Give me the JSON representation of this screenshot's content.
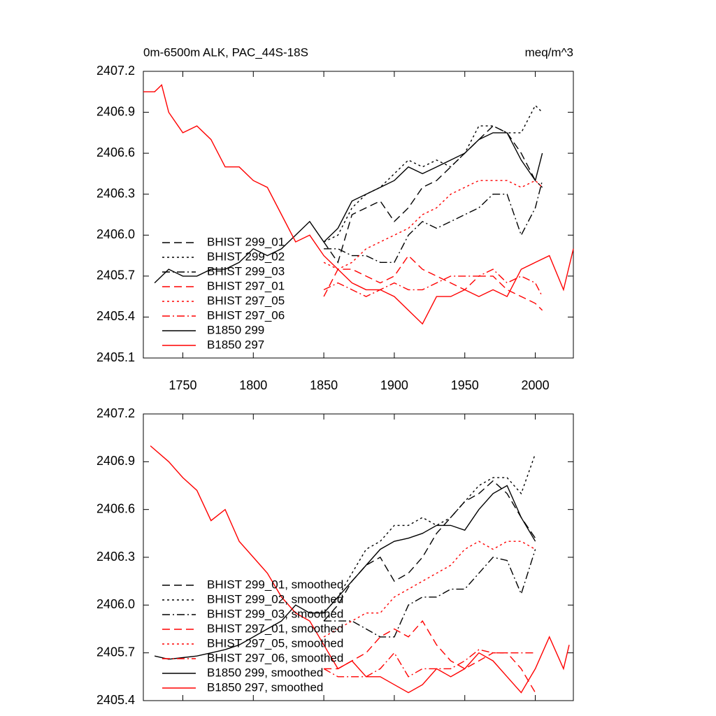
{
  "chart_data": [
    {
      "type": "line",
      "title": "0m-6500m ALK, PAC_44S-18S",
      "y_units": "meq/m^3",
      "xlim": [
        1722,
        2027
      ],
      "xticks": [
        1750,
        1800,
        1850,
        1900,
        1950,
        2000
      ],
      "xtick_labels": true,
      "ylim": [
        2405.1,
        2407.2
      ],
      "yticks": [
        2405.1,
        2405.4,
        2405.7,
        {
          "value": 2406,
          "label": "2406.0"
        },
        2406.3,
        2406.6,
        2406.9,
        2407.2
      ],
      "legend": "lower left",
      "series": [
        {
          "name": "BHIST 299_01",
          "color": "#000000",
          "dash": "dashed",
          "x": [
            1850,
            1860,
            1870,
            1880,
            1890,
            1900,
            1910,
            1920,
            1930,
            1940,
            1950,
            1960,
            1970,
            1980,
            1990,
            2000,
            2005
          ],
          "values": [
            2405.95,
            2405.8,
            2406.15,
            2406.2,
            2406.25,
            2406.1,
            2406.2,
            2406.35,
            2406.4,
            2406.5,
            2406.6,
            2406.7,
            2406.8,
            2406.75,
            2406.6,
            2406.4,
            2406.35
          ]
        },
        {
          "name": "BHIST 299_02",
          "color": "#000000",
          "dash": "dotted",
          "x": [
            1850,
            1860,
            1870,
            1880,
            1890,
            1900,
            1910,
            1920,
            1930,
            1940,
            1950,
            1960,
            1970,
            1980,
            1990,
            2000,
            2005
          ],
          "values": [
            2405.95,
            2406.0,
            2406.2,
            2406.3,
            2406.35,
            2406.45,
            2406.55,
            2406.5,
            2406.55,
            2406.5,
            2406.6,
            2406.8,
            2406.8,
            2406.75,
            2406.75,
            2406.95,
            2406.9
          ]
        },
        {
          "name": "BHIST 299_03",
          "color": "#000000",
          "dash": "dashdot",
          "x": [
            1850,
            1860,
            1870,
            1880,
            1890,
            1900,
            1910,
            1920,
            1930,
            1940,
            1950,
            1960,
            1970,
            1980,
            1990,
            2000,
            2005
          ],
          "values": [
            2405.9,
            2405.9,
            2405.85,
            2405.85,
            2405.8,
            2405.8,
            2406.0,
            2406.1,
            2406.05,
            2406.1,
            2406.15,
            2406.2,
            2406.3,
            2406.3,
            2406.0,
            2406.2,
            2406.4
          ]
        },
        {
          "name": "BHIST 297_01",
          "color": "#ff0000",
          "dash": "dashed",
          "x": [
            1850,
            1860,
            1870,
            1880,
            1890,
            1900,
            1910,
            1920,
            1930,
            1940,
            1950,
            1960,
            1970,
            1980,
            1990,
            2000,
            2005
          ],
          "values": [
            2405.55,
            2405.75,
            2405.75,
            2405.7,
            2405.65,
            2405.7,
            2405.85,
            2405.75,
            2405.7,
            2405.65,
            2405.6,
            2405.7,
            2405.7,
            2405.6,
            2405.55,
            2405.5,
            2405.45
          ]
        },
        {
          "name": "BHIST 297_05",
          "color": "#ff0000",
          "dash": "dotted",
          "x": [
            1850,
            1860,
            1870,
            1880,
            1890,
            1900,
            1910,
            1920,
            1930,
            1940,
            1950,
            1960,
            1970,
            1980,
            1990,
            2000,
            2005
          ],
          "values": [
            2405.8,
            2405.75,
            2405.8,
            2405.9,
            2405.95,
            2406.0,
            2406.05,
            2406.15,
            2406.2,
            2406.3,
            2406.35,
            2406.4,
            2406.4,
            2406.4,
            2406.35,
            2406.4,
            2406.35
          ]
        },
        {
          "name": "BHIST 297_06",
          "color": "#ff0000",
          "dash": "dashdot",
          "x": [
            1850,
            1860,
            1870,
            1880,
            1890,
            1900,
            1910,
            1920,
            1930,
            1940,
            1950,
            1960,
            1970,
            1980,
            1990,
            2000,
            2005
          ],
          "values": [
            2405.6,
            2405.65,
            2405.6,
            2405.55,
            2405.6,
            2405.65,
            2405.6,
            2405.6,
            2405.65,
            2405.7,
            2405.7,
            2405.7,
            2405.75,
            2405.65,
            2405.7,
            2405.65,
            2405.55
          ]
        },
        {
          "name": "B1850 299",
          "color": "#000000",
          "dash": "solid",
          "x": [
            1730,
            1740,
            1750,
            1760,
            1770,
            1780,
            1790,
            1800,
            1810,
            1820,
            1830,
            1840,
            1850,
            1860,
            1870,
            1880,
            1890,
            1900,
            1910,
            1920,
            1930,
            1940,
            1950,
            1960,
            1970,
            1980,
            1990,
            2000,
            2005
          ],
          "values": [
            2405.65,
            2405.75,
            2405.7,
            2405.7,
            2405.75,
            2405.75,
            2405.8,
            2405.9,
            2405.85,
            2405.9,
            2406.0,
            2406.1,
            2405.95,
            2406.05,
            2406.25,
            2406.3,
            2406.35,
            2406.4,
            2406.5,
            2406.45,
            2406.5,
            2406.55,
            2406.6,
            2406.7,
            2406.75,
            2406.75,
            2406.55,
            2406.4,
            2406.6
          ]
        },
        {
          "name": "B1850 297",
          "color": "#ff0000",
          "dash": "solid",
          "x": [
            1722,
            1730,
            1735,
            1740,
            1750,
            1760,
            1770,
            1780,
            1790,
            1800,
            1810,
            1820,
            1830,
            1840,
            1850,
            1860,
            1870,
            1880,
            1890,
            1900,
            1910,
            1920,
            1930,
            1940,
            1950,
            1960,
            1970,
            1980,
            1990,
            2000,
            2010,
            2020,
            2027
          ],
          "values": [
            2407.05,
            2407.05,
            2407.1,
            2406.9,
            2406.75,
            2406.8,
            2406.7,
            2406.5,
            2406.5,
            2406.4,
            2406.35,
            2406.15,
            2405.95,
            2406.0,
            2405.85,
            2405.75,
            2405.65,
            2405.6,
            2405.6,
            2405.55,
            2405.45,
            2405.35,
            2405.55,
            2405.55,
            2405.6,
            2405.55,
            2405.6,
            2405.55,
            2405.75,
            2405.8,
            2405.85,
            2405.6,
            2405.9
          ]
        }
      ]
    },
    {
      "type": "line",
      "xlim": [
        1722,
        2027
      ],
      "xticks": [
        1750,
        1800,
        1850,
        1900,
        1950,
        2000
      ],
      "xtick_labels": false,
      "ylim": [
        2405.4,
        2407.2
      ],
      "yticks": [
        2405.4,
        2405.7,
        {
          "value": 2406,
          "label": "2406.0"
        },
        2406.3,
        2406.6,
        2406.9,
        2407.2
      ],
      "legend": "lower left",
      "series": [
        {
          "name": "BHIST 299_01, smoothed",
          "color": "#000000",
          "dash": "dashed",
          "x": [
            1850,
            1860,
            1870,
            1880,
            1890,
            1900,
            1910,
            1920,
            1930,
            1940,
            1950,
            1960,
            1970,
            1980,
            1990,
            2000
          ],
          "values": [
            2405.9,
            2406.0,
            2406.15,
            2406.25,
            2406.3,
            2406.15,
            2406.2,
            2406.3,
            2406.45,
            2406.55,
            2406.65,
            2406.7,
            2406.78,
            2406.7,
            2406.55,
            2406.42
          ]
        },
        {
          "name": "BHIST 299_02, smoothed",
          "color": "#000000",
          "dash": "dotted",
          "x": [
            1850,
            1860,
            1870,
            1880,
            1890,
            1900,
            1910,
            1920,
            1930,
            1940,
            1950,
            1960,
            1970,
            1980,
            1990,
            2000
          ],
          "values": [
            2405.95,
            2406.05,
            2406.2,
            2406.35,
            2406.4,
            2406.5,
            2406.5,
            2406.55,
            2406.5,
            2406.55,
            2406.65,
            2406.75,
            2406.8,
            2406.8,
            2406.7,
            2406.95
          ]
        },
        {
          "name": "BHIST 299_03, smoothed",
          "color": "#000000",
          "dash": "dashdot",
          "x": [
            1850,
            1860,
            1870,
            1880,
            1890,
            1900,
            1910,
            1920,
            1930,
            1940,
            1950,
            1960,
            1970,
            1980,
            1990,
            2000
          ],
          "values": [
            2405.9,
            2405.9,
            2405.9,
            2405.85,
            2405.8,
            2405.8,
            2406.0,
            2406.05,
            2406.05,
            2406.1,
            2406.1,
            2406.2,
            2406.3,
            2406.28,
            2406.07,
            2406.35
          ]
        },
        {
          "name": "BHIST 297_01, smoothed",
          "color": "#ff0000",
          "dash": "dashed",
          "x": [
            1850,
            1860,
            1870,
            1880,
            1890,
            1900,
            1910,
            1920,
            1930,
            1940,
            1950,
            1960,
            1970,
            1980,
            1990,
            2000
          ],
          "values": [
            2405.6,
            2405.6,
            2405.65,
            2405.7,
            2405.8,
            2405.85,
            2405.8,
            2405.9,
            2405.75,
            2405.65,
            2405.6,
            2405.65,
            2405.7,
            2405.7,
            2405.6,
            2405.45
          ]
        },
        {
          "name": "BHIST 297_05, smoothed",
          "color": "#ff0000",
          "dash": "dotted",
          "x": [
            1850,
            1860,
            1870,
            1880,
            1890,
            1900,
            1910,
            1920,
            1930,
            1940,
            1950,
            1960,
            1970,
            1980,
            1990,
            2000
          ],
          "values": [
            2405.8,
            2405.85,
            2405.9,
            2405.95,
            2405.95,
            2406.05,
            2406.1,
            2406.15,
            2406.2,
            2406.25,
            2406.35,
            2406.4,
            2406.35,
            2406.4,
            2406.4,
            2406.35
          ]
        },
        {
          "name": "BHIST 297_06, smoothed",
          "color": "#ff0000",
          "dash": "dashdot",
          "x": [
            1850,
            1860,
            1870,
            1880,
            1890,
            1900,
            1910,
            1920,
            1930,
            1940,
            1950,
            1960,
            1970,
            1980,
            1990,
            2000
          ],
          "values": [
            2405.6,
            2405.55,
            2405.55,
            2405.55,
            2405.6,
            2405.7,
            2405.55,
            2405.6,
            2405.6,
            2405.6,
            2405.65,
            2405.72,
            2405.7,
            2405.7,
            2405.7,
            2405.7
          ]
        },
        {
          "name": "B1850 299, smoothed",
          "color": "#000000",
          "dash": "solid",
          "x": [
            1730,
            1740,
            1750,
            1760,
            1770,
            1780,
            1790,
            1800,
            1810,
            1820,
            1830,
            1840,
            1850,
            1860,
            1870,
            1880,
            1890,
            1900,
            1910,
            1920,
            1930,
            1940,
            1950,
            1960,
            1970,
            1980,
            1990,
            2000
          ],
          "values": [
            2405.68,
            2405.66,
            2405.67,
            2405.68,
            2405.7,
            2405.72,
            2405.75,
            2405.8,
            2405.85,
            2405.9,
            2406.0,
            2405.95,
            2405.95,
            2406.05,
            2406.15,
            2406.25,
            2406.35,
            2406.4,
            2406.42,
            2406.45,
            2406.5,
            2406.5,
            2406.47,
            2406.6,
            2406.7,
            2406.75,
            2406.55,
            2406.4
          ]
        },
        {
          "name": "B1850 297, smoothed",
          "color": "#ff0000",
          "dash": "solid",
          "x": [
            1727,
            1740,
            1750,
            1760,
            1770,
            1780,
            1790,
            1800,
            1810,
            1820,
            1830,
            1840,
            1850,
            1860,
            1870,
            1880,
            1890,
            1900,
            1910,
            1920,
            1930,
            1940,
            1950,
            1960,
            1970,
            1980,
            1990,
            2000,
            2010,
            2020,
            2024
          ],
          "values": [
            2407.0,
            2406.9,
            2406.8,
            2406.72,
            2406.53,
            2406.6,
            2406.4,
            2406.3,
            2406.2,
            2406.05,
            2405.95,
            2405.9,
            2405.75,
            2405.6,
            2405.65,
            2405.55,
            2405.55,
            2405.5,
            2405.45,
            2405.5,
            2405.6,
            2405.55,
            2405.6,
            2405.7,
            2405.65,
            2405.55,
            2405.45,
            2405.6,
            2405.8,
            2405.6,
            2405.75
          ]
        }
      ]
    }
  ]
}
